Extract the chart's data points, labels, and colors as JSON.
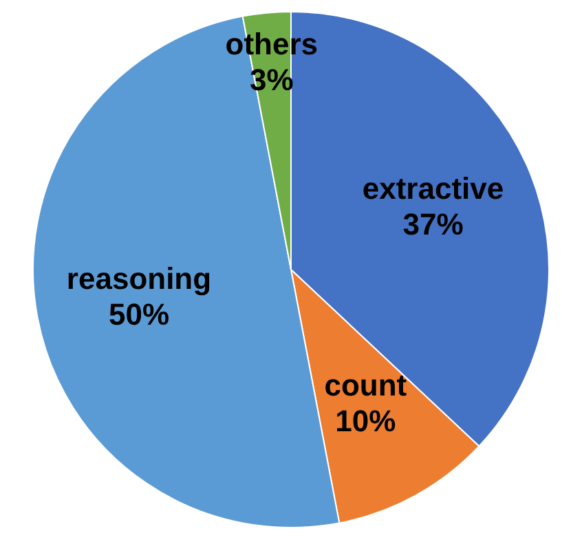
{
  "chart_data": {
    "type": "pie",
    "categories": [
      "extractive",
      "count",
      "reasoning",
      "others"
    ],
    "values": [
      37,
      10,
      50,
      3
    ],
    "colors": [
      "#4472c4",
      "#ed7d31",
      "#5b9bd5",
      "#70ad47"
    ],
    "value_labels": [
      "37%",
      "10%",
      "50%",
      "3%"
    ]
  }
}
